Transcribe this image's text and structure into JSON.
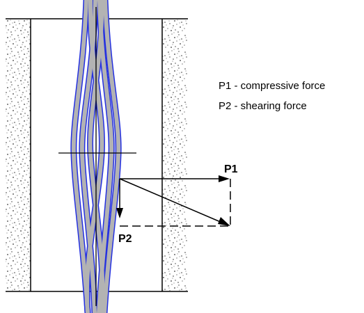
{
  "legend": [
    "P1 - compressive force",
    "P2 - shearing force"
  ],
  "labels": {
    "p1": "P1",
    "p2": "P2"
  },
  "colors": {
    "fiber_fill": "#b3b3b3",
    "fiber_edge": "#2430e0",
    "line": "#000000",
    "background": "#ffffff",
    "speckle": "#404040"
  }
}
